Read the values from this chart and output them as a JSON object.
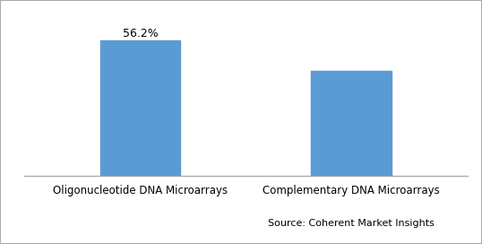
{
  "categories": [
    "Oligonucleotide DNA Microarrays",
    "Complementary DNA Microarrays"
  ],
  "values": [
    56.2,
    43.8
  ],
  "bar_color": "#5b9bd5",
  "label_first_bar": "56.2%",
  "source_text": "Source: Coherent Market Insights",
  "ylim": [
    0,
    65
  ],
  "bar_width": 0.38,
  "background_color": "#ffffff",
  "label_fontsize": 9,
  "tick_fontsize": 8.5,
  "source_fontsize": 8
}
